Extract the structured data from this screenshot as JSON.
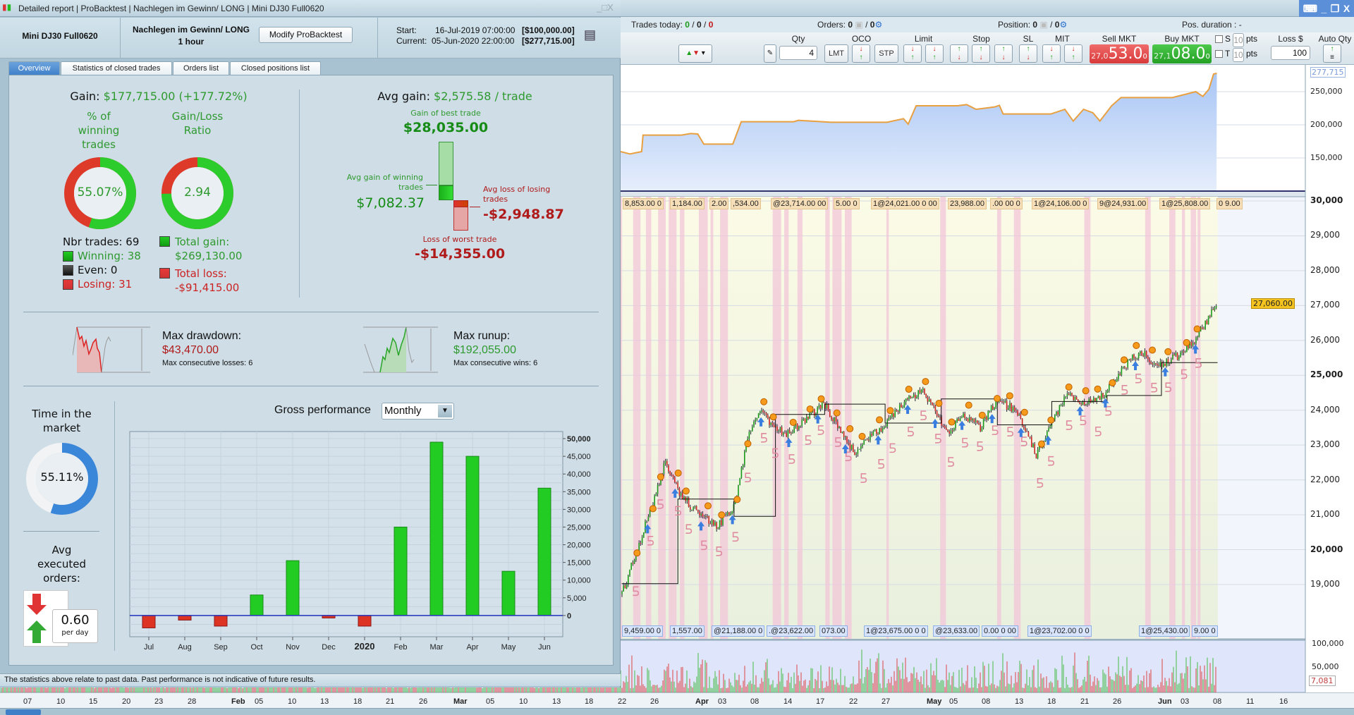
{
  "window": {
    "buttons": [
      "keyboard-icon",
      "minimize",
      "restore",
      "close"
    ]
  },
  "dialog": {
    "title_parts": [
      "Detailed report",
      "ProBacktest",
      "Nachlegen im Gewinn/ LONG",
      "Mini DJ30 Full0620"
    ],
    "instrument": "Mini DJ30 Full0620",
    "system_name": "Nachlegen im Gewinn/ LONG",
    "timeframe": "1 hour",
    "modify_button": "Modify ProBacktest",
    "start_label": "Start:",
    "start_date": "16-Jul-2019 07:00:00",
    "start_capital": "[$100,000.00]",
    "current_label": "Current:",
    "current_date": "05-Jun-2020 22:00:00",
    "current_capital": "[$277,715.00]",
    "tabs": [
      "Overview",
      "Statistics of closed trades",
      "Orders list",
      "Closed positions list"
    ],
    "active_tab": "Overview",
    "disclaimer": "The statistics above relate to past data. Past performance is not indicative of future results."
  },
  "overview": {
    "gain_label": "Gain:",
    "gain_value": "$177,715.00 (+177.72%)",
    "win_title": [
      "% of",
      "winning",
      "trades"
    ],
    "win_pct": "55.07%",
    "win_fraction": 0.5507,
    "ratio_title": [
      "Gain/Loss",
      "Ratio"
    ],
    "ratio": "2.94",
    "ratio_green_fraction": 0.746,
    "nbr_trades": "Nbr trades: 69",
    "winning": "Winning: 38",
    "even": "Even: 0",
    "losing": "Losing: 31",
    "total_gain_label": "Total gain:",
    "total_gain_value": "$269,130.00",
    "total_loss_label": "Total loss:",
    "total_loss_value": "-$91,415.00",
    "avg_gain_label": "Avg gain:",
    "avg_gain_value": "$2,575.58 / trade",
    "best_label": "Gain of best trade",
    "best_value": "$28,035.00",
    "avg_win_label": [
      "Avg gain of winning",
      "trades"
    ],
    "avg_win_value": "$7,082.37",
    "avg_loss_label": [
      "Avg loss of losing",
      "trades"
    ],
    "avg_loss_value": "-$2,948.87",
    "worst_label": "Loss of worst trade",
    "worst_value": "-$14,355.00",
    "drawdown_label": "Max drawdown:",
    "drawdown_value": "$43,470.00",
    "drawdown_sub": "Max consecutive losses: 6",
    "runup_label": "Max runup:",
    "runup_value": "$192,055.00",
    "runup_sub": "Max consecutive wins: 6",
    "time_label": [
      "Time in the",
      "market"
    ],
    "time_pct": "55.11%",
    "time_fraction": 0.5511,
    "orders_label": [
      "Avg",
      "executed",
      "orders:"
    ],
    "orders_value": "0.60",
    "orders_unit": "per day",
    "gross_label": "Gross performance",
    "gross_period": "Monthly"
  },
  "chart_data": {
    "type": "bar",
    "title": "Gross performance",
    "categories": [
      "Jul",
      "Aug",
      "Sep",
      "Oct",
      "Nov",
      "Dec",
      "2020",
      "Feb",
      "Mar",
      "Apr",
      "May",
      "Jun"
    ],
    "values": [
      -3500,
      -1300,
      -3000,
      5800,
      15500,
      -700,
      -3000,
      25000,
      49000,
      45000,
      12500,
      36000
    ],
    "ylim": [
      -6000,
      52000
    ],
    "yticks": [
      "50,000",
      "45,000",
      "40,000",
      "35,000",
      "30,000",
      "25,000",
      "20,000",
      "15,000",
      "10,000",
      "5,000",
      "0"
    ],
    "ytick_values": [
      50000,
      45000,
      40000,
      35000,
      30000,
      25000,
      20000,
      15000,
      10000,
      5000,
      0
    ],
    "positive_color": "#22cc22",
    "negative_color": "#dd3322",
    "grid": true
  },
  "trading": {
    "trades_today_label": "Trades today:",
    "trades_today": [
      "0",
      "0",
      "0"
    ],
    "orders_label": "Orders:",
    "orders_value": "0",
    "orders_total": "0",
    "position_label": "Position:",
    "position_value": "0",
    "position_total": "0",
    "pos_duration_label": "Pos. duration :",
    "pos_duration_value": "-",
    "qty_label": "Qty",
    "qty_value": "4",
    "oco_label": "OCO",
    "lmt": "LMT",
    "stp": "STP",
    "limit_label": "Limit",
    "stop_label": "Stop",
    "sl_label": "SL",
    "mit_label": "MIT",
    "sell_label": "Sell MKT",
    "sell_prefix": "27,0",
    "sell_price": "53.0",
    "sell_sup": "0",
    "buy_label": "Buy MKT",
    "buy_prefix": "27,1",
    "buy_price": "08.0",
    "buy_sup": "0",
    "s_label": "S",
    "t_label": "T",
    "pts_value": "10",
    "pts": "pts",
    "loss_label": "Loss $",
    "loss_value": "100",
    "auto_qty_label": "Auto Qty"
  },
  "equity_axis": {
    "current": "277,715",
    "ticks": [
      "250,000",
      "200,000",
      "150,000"
    ],
    "tick_values": [
      250000,
      200000,
      150000
    ]
  },
  "price_axis": {
    "ticks": [
      "30,000",
      "29,000",
      "28,000",
      "27,000",
      "26,000",
      "25,000",
      "24,000",
      "23,000",
      "22,000",
      "21,000",
      "20,000",
      "19,000"
    ],
    "bold": [
      "30,000",
      "25,000",
      "20,000"
    ],
    "current": "27,060.00",
    "current_value": 27060
  },
  "volume_axis": {
    "ticks": [
      "100,000",
      "50,000"
    ],
    "current": "7,081"
  },
  "annotations_top": [
    "8,853.00 0",
    "1,184.00",
    "2.00",
    ",534.00",
    "@23,714.00 00",
    "5.00 0",
    "1@24,021.00 0 00",
    "23,988.00",
    ".00 00 0",
    "1@24,106.00 0",
    "9@24,931.00",
    "1@25,808.00",
    "0 9.00"
  ],
  "annotations_bottom": [
    "9,459.00 0",
    "1,557.00",
    "@21,188.00 0",
    ".@23,622.00",
    "073.00",
    "1@23,675.00 0 0",
    "@23,633.00",
    "0.00 0 00",
    "1@23,702.00 0 0",
    "1@25,430.00",
    "9.00 0"
  ],
  "dates": [
    "07",
    "10",
    "15",
    "20",
    "23",
    "28",
    "Feb",
    "05",
    "10",
    "13",
    "18",
    "21",
    "26",
    "Mar",
    "05",
    "10",
    "13",
    "18",
    "22",
    "26",
    "Apr",
    "03",
    "08",
    "14",
    "17",
    "22",
    "27",
    "May",
    "05",
    "08",
    "13",
    "18",
    "21",
    "26",
    "Jun",
    "03",
    "08",
    "11",
    "16"
  ],
  "colors": {
    "accent": "#3f7fc8",
    "gain": "#22cc22",
    "loss": "#dd3322",
    "sell": "#e04848",
    "buy": "#2eaa2e",
    "time_ring": "#3a86d8"
  }
}
